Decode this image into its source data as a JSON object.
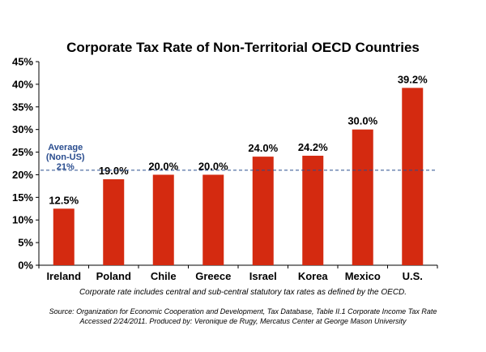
{
  "chart_data": {
    "type": "bar",
    "title": "Corporate Tax Rate of Non-Territorial OECD Countries",
    "categories": [
      "Ireland",
      "Poland",
      "Chile",
      "Greece",
      "Israel",
      "Korea",
      "Mexico",
      "U.S."
    ],
    "values": [
      12.5,
      19.0,
      20.0,
      20.0,
      24.0,
      24.2,
      30.0,
      39.2
    ],
    "value_labels": [
      "12.5%",
      "19.0%",
      "20.0%",
      "20.0%",
      "24.0%",
      "24.2%",
      "30.0%",
      "39.2%"
    ],
    "ylim": [
      0,
      45
    ],
    "yticks": [
      0,
      5,
      10,
      15,
      20,
      25,
      30,
      35,
      40,
      45
    ],
    "ytick_labels": [
      "0%",
      "5%",
      "10%",
      "15%",
      "20%",
      "25%",
      "30%",
      "35%",
      "40%",
      "45%"
    ],
    "grid": false,
    "bar_color": "#d42a10",
    "reference_line": {
      "value": 21,
      "label_lines": [
        "Average",
        "(Non-US)",
        "21%"
      ],
      "color": "#2a4d8f",
      "style": "dashed"
    }
  },
  "notes": {
    "rate_note": "Corporate rate includes central and sub-central statutory tax rates as defined by the OECD.",
    "source_line1": "Source:  Organization for Economic Cooperation and Development, Tax Database, Table II.1 Corporate Income Tax Rate",
    "source_line2": "Accessed 2/24/2011. Produced by: Veronique de Rugy, Mercatus Center at George Mason University"
  }
}
